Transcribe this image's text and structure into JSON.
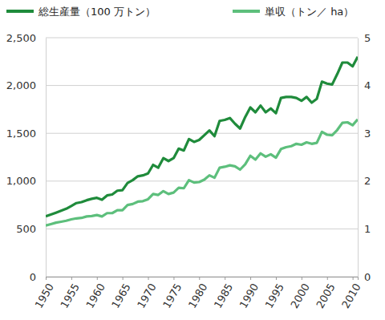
{
  "chart_data": {
    "type": "line",
    "x": [
      1950,
      1951,
      1952,
      1953,
      1954,
      1955,
      1956,
      1957,
      1958,
      1959,
      1960,
      1961,
      1962,
      1963,
      1964,
      1965,
      1966,
      1967,
      1968,
      1969,
      1970,
      1971,
      1972,
      1973,
      1974,
      1975,
      1976,
      1977,
      1978,
      1979,
      1980,
      1981,
      1982,
      1983,
      1984,
      1985,
      1986,
      1987,
      1988,
      1989,
      1990,
      1991,
      1992,
      1993,
      1994,
      1995,
      1996,
      1997,
      1998,
      1999,
      2000,
      2001,
      2002,
      2003,
      2004,
      2005,
      2006,
      2007,
      2008,
      2009,
      2010,
      2011
    ],
    "series": [
      {
        "name": "総生産量（100 万トン）",
        "color": "#1f8b3b",
        "values": [
          631,
          650,
          670,
          690,
          710,
          740,
          770,
          780,
          800,
          815,
          825,
          805,
          850,
          860,
          900,
          905,
          980,
          1010,
          1050,
          1060,
          1080,
          1170,
          1140,
          1240,
          1210,
          1240,
          1340,
          1320,
          1440,
          1410,
          1430,
          1480,
          1530,
          1470,
          1630,
          1640,
          1660,
          1600,
          1550,
          1670,
          1770,
          1720,
          1790,
          1720,
          1760,
          1710,
          1870,
          1880,
          1880,
          1870,
          1840,
          1880,
          1820,
          1860,
          2040,
          2020,
          2010,
          2120,
          2240,
          2240,
          2200,
          2300
        ]
      },
      {
        "name": "単収（トン／ ha）",
        "color": "#5dbf7c",
        "axis": "y2",
        "values": [
          1.07,
          1.1,
          1.13,
          1.15,
          1.17,
          1.2,
          1.22,
          1.23,
          1.26,
          1.27,
          1.29,
          1.26,
          1.33,
          1.33,
          1.39,
          1.39,
          1.5,
          1.52,
          1.57,
          1.58,
          1.62,
          1.73,
          1.71,
          1.79,
          1.73,
          1.76,
          1.86,
          1.85,
          2.02,
          1.97,
          1.98,
          2.03,
          2.12,
          2.07,
          2.28,
          2.3,
          2.33,
          2.31,
          2.24,
          2.35,
          2.53,
          2.45,
          2.58,
          2.51,
          2.56,
          2.49,
          2.67,
          2.71,
          2.73,
          2.78,
          2.76,
          2.81,
          2.78,
          2.8,
          3.03,
          2.97,
          2.96,
          3.07,
          3.22,
          3.23,
          3.17,
          3.29
        ]
      }
    ],
    "xlim": [
      1950,
      2011
    ],
    "xticks": [
      1950,
      1955,
      1960,
      1965,
      1970,
      1975,
      1980,
      1985,
      1990,
      1995,
      2000,
      2005,
      2010
    ],
    "ylim": [
      0,
      2500
    ],
    "yticks": [
      0,
      500,
      {
        "value": 1000,
        "label": "1,000"
      },
      {
        "value": 1500,
        "label": "1,500"
      },
      {
        "value": 2000,
        "label": "2,000"
      },
      {
        "value": 2500,
        "label": "2,500"
      }
    ],
    "y2lim": [
      0,
      5
    ],
    "y2ticks": [
      0,
      1,
      2,
      3,
      4,
      5
    ],
    "grid": true,
    "legend": "top"
  }
}
